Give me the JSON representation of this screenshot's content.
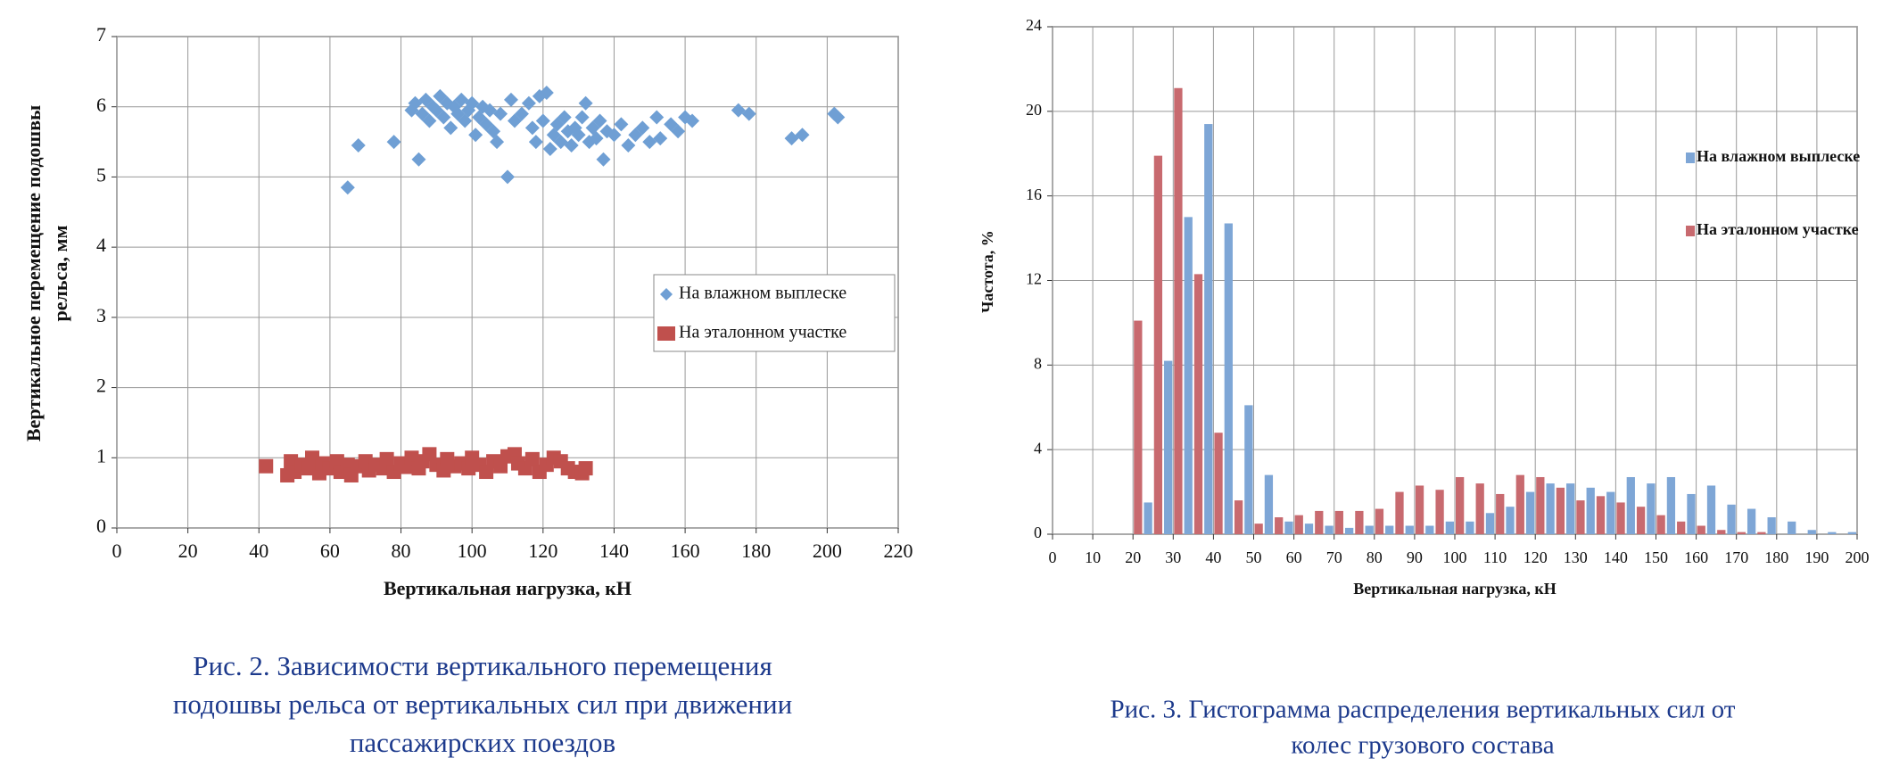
{
  "chart_data": [
    {
      "type": "scatter",
      "x_label": "Вертикальная нагрузка, кН",
      "y_label": [
        "Вертикальное перемещение подошвы",
        "рельса, мм"
      ],
      "caption": [
        "Рис. 2. Зависимости вертикального перемещения",
        "подошвы рельса от вертикальных сил при движении",
        "пассажирских поездов"
      ],
      "xlim": [
        0,
        220
      ],
      "xticks": [
        0,
        20,
        40,
        60,
        80,
        100,
        120,
        140,
        160,
        180,
        200,
        220
      ],
      "ylim": [
        0,
        7
      ],
      "yticks": [
        0,
        1,
        2,
        3,
        4,
        5,
        6,
        7
      ],
      "grid": true,
      "legend": "right",
      "series": [
        {
          "name": "На влажном выплеске",
          "color": "#6f9fd4",
          "marker": "diamond",
          "x": [
            65,
            68,
            78,
            83,
            84,
            85,
            86,
            87,
            88,
            89,
            90,
            91,
            92,
            93,
            94,
            95,
            96,
            97,
            98,
            99,
            100,
            101,
            102,
            103,
            104,
            105,
            106,
            107,
            108,
            110,
            111,
            112,
            114,
            116,
            117,
            118,
            119,
            120,
            121,
            122,
            123,
            124,
            125,
            126,
            127,
            128,
            129,
            130,
            131,
            132,
            133,
            134,
            135,
            136,
            137,
            138,
            140,
            142,
            144,
            146,
            148,
            150,
            152,
            153,
            156,
            158,
            160,
            162,
            175,
            178,
            190,
            193,
            202,
            203
          ],
          "values": [
            4.85,
            5.45,
            5.5,
            5.95,
            6.05,
            5.25,
            5.9,
            6.1,
            5.8,
            6.0,
            5.95,
            6.15,
            5.85,
            6.05,
            5.7,
            6.0,
            5.9,
            6.1,
            5.8,
            5.95,
            6.05,
            5.6,
            5.85,
            6.0,
            5.75,
            5.95,
            5.65,
            5.5,
            5.9,
            5.0,
            6.1,
            5.8,
            5.9,
            6.05,
            5.7,
            5.5,
            6.15,
            5.8,
            6.2,
            5.4,
            5.6,
            5.75,
            5.5,
            5.85,
            5.65,
            5.45,
            5.7,
            5.6,
            5.85,
            6.05,
            5.5,
            5.7,
            5.55,
            5.8,
            5.25,
            5.65,
            5.6,
            5.75,
            5.45,
            5.6,
            5.7,
            5.5,
            5.85,
            5.55,
            5.75,
            5.65,
            5.85,
            5.8,
            5.95,
            5.9,
            5.55,
            5.6,
            5.9,
            5.85
          ]
        },
        {
          "name": "На эталонном участке",
          "color": "#c0504d",
          "marker": "square",
          "x": [
            42,
            48,
            49,
            50,
            52,
            54,
            55,
            57,
            58,
            60,
            62,
            63,
            65,
            66,
            68,
            70,
            71,
            73,
            75,
            76,
            78,
            80,
            81,
            83,
            85,
            86,
            88,
            90,
            92,
            93,
            95,
            97,
            99,
            100,
            102,
            104,
            106,
            108,
            110,
            112,
            113,
            115,
            117,
            119,
            121,
            123,
            125,
            127,
            129,
            131,
            132
          ],
          "values": [
            0.88,
            0.75,
            0.95,
            0.8,
            0.9,
            0.85,
            1.0,
            0.78,
            0.92,
            0.85,
            0.95,
            0.8,
            0.9,
            0.75,
            0.88,
            0.95,
            0.82,
            0.9,
            0.85,
            0.98,
            0.8,
            0.92,
            0.87,
            1.0,
            0.85,
            0.95,
            1.05,
            0.9,
            0.82,
            0.98,
            0.88,
            0.92,
            0.85,
            1.0,
            0.9,
            0.8,
            0.95,
            0.88,
            1.02,
            1.05,
            0.92,
            0.85,
            0.98,
            0.8,
            0.9,
            1.0,
            0.95,
            0.85,
            0.8,
            0.78,
            0.85
          ]
        }
      ]
    },
    {
      "type": "histogram",
      "x_label": "Вертикальная нагрузка, кН",
      "y_label": [
        "Частота, %"
      ],
      "caption": [
        "Рис. 3. Гистограмма распределения вертикальных сил от",
        "колес грузового состава"
      ],
      "xlim": [
        0,
        200
      ],
      "xticks": [
        0,
        10,
        20,
        30,
        40,
        50,
        60,
        70,
        80,
        90,
        100,
        110,
        120,
        130,
        140,
        150,
        160,
        170,
        180,
        190,
        200
      ],
      "ylim": [
        0,
        24
      ],
      "yticks": [
        0,
        4,
        8,
        12,
        16,
        20,
        24
      ],
      "grid": true,
      "legend": "upper right",
      "bins": [
        20,
        25,
        30,
        35,
        40,
        45,
        50,
        55,
        60,
        65,
        70,
        75,
        80,
        85,
        90,
        95,
        100,
        105,
        110,
        115,
        120,
        125,
        130,
        135,
        140,
        145,
        150,
        155,
        160,
        165,
        170,
        175,
        180,
        185,
        190,
        195,
        200
      ],
      "series": [
        {
          "name": "На влажном выплеске",
          "color": "#7ea6d6",
          "values": [
            1.5,
            8.2,
            15.0,
            19.4,
            14.7,
            6.1,
            2.8,
            0.6,
            0.5,
            0.4,
            0.3,
            0.4,
            0.4,
            0.4,
            0.4,
            0.6,
            0.6,
            1.0,
            1.3,
            2.0,
            2.4,
            2.4,
            2.2,
            2.0,
            2.7,
            2.4,
            2.7,
            1.9,
            2.3,
            1.4,
            1.2,
            0.8,
            0.6,
            0.2,
            0.1,
            0.1
          ]
        },
        {
          "name": "На эталонном участке",
          "color": "#c86a6f",
          "values": [
            10.1,
            17.9,
            21.1,
            12.3,
            4.8,
            1.6,
            0.5,
            0.8,
            0.9,
            1.1,
            1.1,
            1.1,
            1.2,
            2.0,
            2.3,
            2.1,
            2.7,
            2.4,
            1.9,
            2.8,
            2.7,
            2.2,
            1.6,
            1.8,
            1.5,
            1.3,
            0.9,
            0.6,
            0.4,
            0.2,
            0.1,
            0.1,
            0,
            0,
            0,
            0
          ]
        }
      ]
    }
  ]
}
